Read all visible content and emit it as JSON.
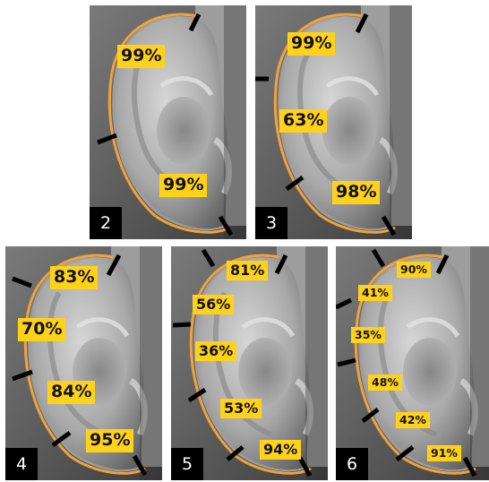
{
  "colors": {
    "outline": "#f2a23a",
    "label_bg": "#ffd21a",
    "cut_mark": "#000000"
  },
  "panels": [
    {
      "number": "2",
      "labels": [
        "99%",
        "99%"
      ]
    },
    {
      "number": "3",
      "labels": [
        "99%",
        "63%",
        "98%"
      ]
    },
    {
      "number": "4",
      "labels": [
        "83%",
        "70%",
        "84%",
        "95%"
      ]
    },
    {
      "number": "5",
      "labels": [
        "81%",
        "56%",
        "36%",
        "53%",
        "94%"
      ]
    },
    {
      "number": "6",
      "labels": [
        "90%",
        "41%",
        "35%",
        "48%",
        "42%",
        "91%"
      ]
    }
  ]
}
